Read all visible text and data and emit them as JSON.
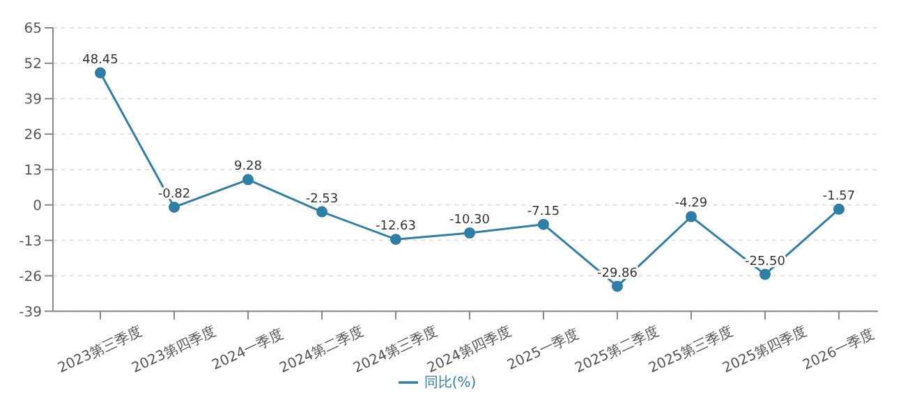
{
  "chart_data": {
    "type": "line",
    "categories": [
      "2023第三季度",
      "2023第四季度",
      "2024一季度",
      "2024第二季度",
      "2024第三季度",
      "2024第四季度",
      "2025一季度",
      "2025第二季度",
      "2025第三季度",
      "2025第四季度",
      "2026一季度"
    ],
    "series": [
      {
        "name": "同比(%)",
        "color": "#2e7ea6",
        "values": [
          48.45,
          -0.82,
          9.28,
          -2.53,
          -12.63,
          -10.3,
          -7.15,
          -29.86,
          -4.29,
          -25.5,
          -1.57
        ]
      }
    ],
    "ylim": [
      -39,
      65
    ],
    "yticks": [
      -39,
      -26,
      -13,
      0,
      13,
      26,
      39,
      52,
      65
    ],
    "grid": "y",
    "legend": "bottom",
    "marker": "circle",
    "line_style": "solid",
    "value_labels": [
      "48.45",
      "-0.82",
      "9.28",
      "-2.53",
      "-12.63",
      "-10.30",
      "-7.15",
      "-29.86",
      "-4.29",
      "-25.50",
      "-1.57"
    ]
  }
}
